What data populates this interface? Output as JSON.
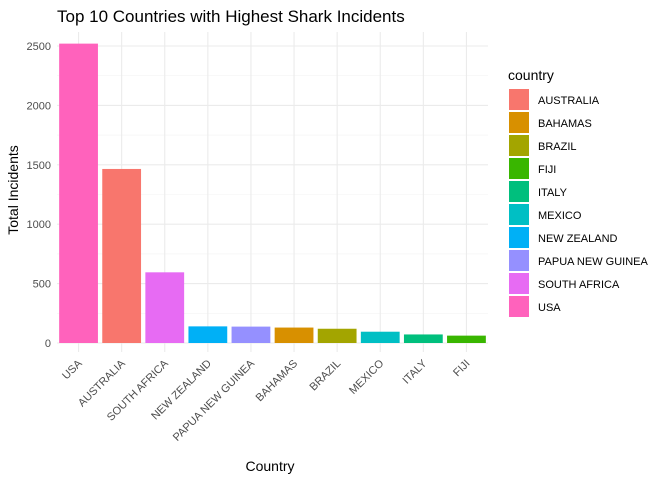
{
  "chart_data": {
    "type": "bar",
    "title": "Top 10 Countries with Highest Shark Incidents",
    "xlabel": "Country",
    "ylabel": "Total Incidents",
    "categories": [
      "USA",
      "AUSTRALIA",
      "SOUTH AFRICA",
      "NEW ZEALAND",
      "PAPUA NEW GUINEA",
      "BAHAMAS",
      "BRAZIL",
      "MEXICO",
      "ITALY",
      "FIJI"
    ],
    "values": [
      2520,
      1465,
      595,
      140,
      138,
      130,
      120,
      95,
      72,
      62
    ],
    "ylim": [
      0,
      2600
    ],
    "yticks": [
      0,
      500,
      1000,
      1500,
      2000,
      2500
    ],
    "ytick_labels": [
      "0",
      "500",
      "1000",
      "1500",
      "2000",
      "2500"
    ],
    "grid": true,
    "legend": {
      "title": "country",
      "placement": "right",
      "entries": [
        "AUSTRALIA",
        "BAHAMAS",
        "BRAZIL",
        "FIJI",
        "ITALY",
        "MEXICO",
        "NEW ZEALAND",
        "PAPUA NEW GUINEA",
        "SOUTH AFRICA",
        "USA"
      ]
    },
    "colors": {
      "AUSTRALIA": "#F8766D",
      "BAHAMAS": "#D89000",
      "BRAZIL": "#A3A500",
      "FIJI": "#39B600",
      "ITALY": "#00BF7D",
      "MEXICO": "#00BFC4",
      "NEW ZEALAND": "#00B0F6",
      "PAPUA NEW GUINEA": "#9590FF",
      "SOUTH AFRICA": "#E76BF3",
      "USA": "#FF62BC"
    }
  }
}
